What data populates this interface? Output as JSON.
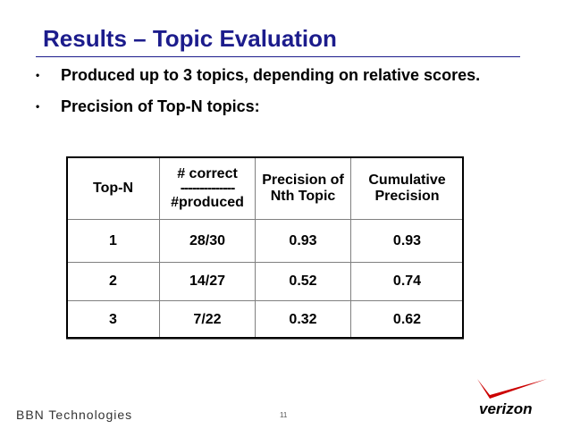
{
  "title": "Results – Topic Evaluation",
  "bullets": [
    {
      "text": "Produced up to 3 topics, depending on relative scores."
    },
    {
      "text": "Precision of Top-N topics:"
    }
  ],
  "bullet_glyph": "•",
  "table": {
    "headers": {
      "topn": "Top-N",
      "correct_top": "# correct",
      "correct_dash": "--------------",
      "correct_bottom": "#produced",
      "precision_nth": "Precision of Nth Topic",
      "cumulative": "Cumulative Precision"
    },
    "rows": [
      {
        "topn": "1",
        "correct": "28/30",
        "precision": "0.93",
        "cumulative": "0.93"
      },
      {
        "topn": "2",
        "correct": "14/27",
        "precision": "0.52",
        "cumulative": "0.74"
      },
      {
        "topn": "3",
        "correct": "7/22",
        "precision": "0.32",
        "cumulative": "0.62"
      }
    ]
  },
  "footer": {
    "company": "BBN Technologies",
    "page_number": "11",
    "logo_text": "verizon"
  },
  "colors": {
    "title": "#1c1c8c",
    "logo_check": "#cc0000"
  }
}
